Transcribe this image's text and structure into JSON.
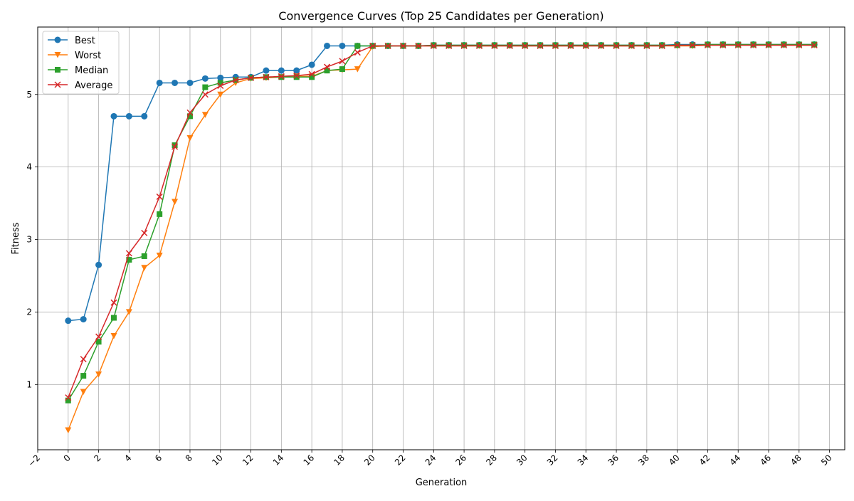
{
  "chart_data": {
    "type": "line",
    "title": "Convergence Curves (Top 25 Candidates per Generation)",
    "xlabel": "Generation",
    "ylabel": "Fitness",
    "xlim": [
      -2,
      51
    ],
    "ylim": [
      0.1,
      5.93
    ],
    "xticks": [
      -2,
      0,
      2,
      4,
      6,
      8,
      10,
      12,
      14,
      16,
      18,
      20,
      22,
      24,
      26,
      28,
      30,
      32,
      34,
      36,
      38,
      40,
      42,
      44,
      46,
      48,
      50
    ],
    "xtick_labels": [
      "−2",
      "0",
      "2",
      "4",
      "6",
      "8",
      "10",
      "12",
      "14",
      "16",
      "18",
      "20",
      "22",
      "24",
      "26",
      "28",
      "30",
      "32",
      "34",
      "36",
      "38",
      "40",
      "42",
      "44",
      "46",
      "48",
      "50"
    ],
    "yticks": [
      1,
      2,
      3,
      4,
      5
    ],
    "ytick_labels": [
      "1",
      "2",
      "3",
      "4",
      "5"
    ],
    "grid": true,
    "legend_position": "top-left",
    "x": [
      0,
      1,
      2,
      3,
      4,
      5,
      6,
      7,
      8,
      9,
      10,
      11,
      12,
      13,
      14,
      15,
      16,
      17,
      18,
      19,
      20,
      21,
      22,
      23,
      24,
      25,
      26,
      27,
      28,
      29,
      30,
      31,
      32,
      33,
      34,
      35,
      36,
      37,
      38,
      39,
      40,
      41,
      42,
      43,
      44,
      45,
      46,
      47,
      48,
      49
    ],
    "series": [
      {
        "name": "Best",
        "color": "#1f77b4",
        "marker": "circle",
        "values": [
          1.88,
          1.9,
          2.65,
          4.7,
          4.7,
          4.7,
          5.16,
          5.16,
          5.16,
          5.22,
          5.23,
          5.24,
          5.24,
          5.33,
          5.33,
          5.33,
          5.41,
          5.67,
          5.67,
          5.67,
          5.67,
          5.67,
          5.67,
          5.67,
          5.68,
          5.68,
          5.68,
          5.68,
          5.68,
          5.68,
          5.68,
          5.68,
          5.68,
          5.68,
          5.68,
          5.68,
          5.68,
          5.68,
          5.68,
          5.68,
          5.69,
          5.69,
          5.69,
          5.69,
          5.69,
          5.69,
          5.69,
          5.69,
          5.69,
          5.69
        ]
      },
      {
        "name": "Worst",
        "color": "#ff7f0e",
        "marker": "triangle-down",
        "values": [
          0.37,
          0.9,
          1.14,
          1.67,
          2.0,
          2.61,
          2.78,
          3.52,
          4.4,
          4.72,
          5.0,
          5.16,
          5.22,
          5.23,
          5.24,
          5.25,
          5.25,
          5.33,
          5.34,
          5.35,
          5.66,
          5.67,
          5.67,
          5.67,
          5.67,
          5.67,
          5.67,
          5.67,
          5.67,
          5.67,
          5.67,
          5.67,
          5.67,
          5.67,
          5.67,
          5.67,
          5.67,
          5.67,
          5.67,
          5.67,
          5.67,
          5.67,
          5.68,
          5.68,
          5.68,
          5.68,
          5.68,
          5.68,
          5.68,
          5.68
        ]
      },
      {
        "name": "Median",
        "color": "#2ca02c",
        "marker": "square",
        "values": [
          0.78,
          1.12,
          1.59,
          1.92,
          2.72,
          2.77,
          3.35,
          4.3,
          4.7,
          5.1,
          5.16,
          5.2,
          5.23,
          5.24,
          5.24,
          5.24,
          5.24,
          5.33,
          5.35,
          5.67,
          5.67,
          5.67,
          5.67,
          5.67,
          5.68,
          5.68,
          5.68,
          5.68,
          5.68,
          5.68,
          5.68,
          5.68,
          5.68,
          5.68,
          5.68,
          5.68,
          5.68,
          5.68,
          5.68,
          5.68,
          5.68,
          5.68,
          5.69,
          5.69,
          5.69,
          5.69,
          5.69,
          5.69,
          5.69,
          5.69
        ]
      },
      {
        "name": "Average",
        "color": "#d62728",
        "marker": "x",
        "values": [
          0.82,
          1.35,
          1.66,
          2.13,
          2.81,
          3.09,
          3.59,
          4.28,
          4.75,
          5.0,
          5.12,
          5.2,
          5.23,
          5.24,
          5.25,
          5.26,
          5.28,
          5.38,
          5.46,
          5.58,
          5.67,
          5.67,
          5.67,
          5.67,
          5.67,
          5.67,
          5.67,
          5.67,
          5.67,
          5.67,
          5.67,
          5.67,
          5.67,
          5.67,
          5.67,
          5.67,
          5.67,
          5.67,
          5.67,
          5.67,
          5.68,
          5.68,
          5.68,
          5.68,
          5.68,
          5.68,
          5.68,
          5.68,
          5.68,
          5.68
        ]
      }
    ]
  }
}
